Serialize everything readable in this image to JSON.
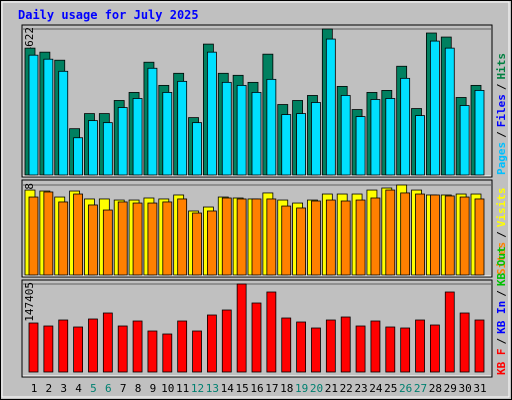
{
  "chart_data": [
    {
      "type": "bar",
      "title": "Daily usage for July 2025",
      "ylim": [
        0,
        34622
      ],
      "yticks": [
        34622
      ],
      "legend": [
        "Pages",
        "Files",
        "Hits"
      ],
      "legend_colors": [
        "#00c0ff",
        "#0000ff",
        "#008040"
      ],
      "legend_separator": "/",
      "series": [
        {
          "name": "Hits",
          "color": "#008060",
          "values": [
            30085,
            29130,
            27220,
            10983,
            14565,
            14565,
            17669,
            19579,
            26742,
            21251,
            24116,
            13610,
            31040,
            24116,
            23638,
            21967,
            28652,
            16714,
            17669,
            18863,
            34622,
            21012,
            15520,
            19579,
            20057,
            25787,
            15759,
            33667,
            32711,
            18385,
            21251
          ]
        },
        {
          "name": "Pages",
          "color": "#00e0ff",
          "values": [
            28414,
            27459,
            24593,
            8834,
            12894,
            12416,
            15998,
            18147,
            25310,
            19579,
            22206,
            12416,
            29130,
            21967,
            21251,
            19579,
            22683,
            14326,
            14565,
            17191,
            32234,
            18863,
            13849,
            17908,
            18147,
            22922,
            14087,
            31756,
            30085,
            16475,
            20057
          ]
        }
      ]
    },
    {
      "type": "bar",
      "ylim": [
        0,
        838
      ],
      "yticks": [
        838
      ],
      "legend": [
        "Sites",
        "Visits"
      ],
      "legend_colors": [
        "#ff8000",
        "#ffff00"
      ],
      "legend_separator": "/",
      "series": [
        {
          "name": "Visits",
          "color": "#ffff00",
          "values": [
            791,
            782,
            726,
            782,
            708,
            708,
            698,
            698,
            717,
            708,
            745,
            596,
            633,
            726,
            717,
            708,
            764,
            698,
            670,
            698,
            754,
            754,
            754,
            791,
            810,
            838,
            791,
            745,
            745,
            754,
            754
          ]
        },
        {
          "name": "Sites",
          "color": "#ff8000",
          "values": [
            726,
            773,
            680,
            754,
            652,
            605,
            680,
            670,
            670,
            680,
            708,
            577,
            596,
            717,
            708,
            708,
            708,
            642,
            624,
            689,
            698,
            689,
            698,
            717,
            791,
            764,
            754,
            745,
            736,
            726,
            708
          ]
        }
      ]
    },
    {
      "type": "bar",
      "ylim": [
        0,
        147405
      ],
      "yticks": [
        147405
      ],
      "legend": [
        "KB F",
        "KB In",
        "KB Out"
      ],
      "legend_colors": [
        "#ff0000",
        "#0000ff",
        "#00c000"
      ],
      "legend_separator": "/",
      "categories": [
        "1",
        "2",
        "3",
        "4",
        "5",
        "6",
        "7",
        "8",
        "9",
        "10",
        "11",
        "12",
        "13",
        "14",
        "15",
        "16",
        "17",
        "18",
        "19",
        "20",
        "21",
        "22",
        "23",
        "24",
        "25",
        "26",
        "27",
        "28",
        "29",
        "30",
        "31"
      ],
      "label_colors": [
        "#000000",
        "#000000",
        "#000000",
        "#000000",
        "#008070",
        "#008070",
        "#000000",
        "#000000",
        "#000000",
        "#000000",
        "#000000",
        "#008070",
        "#008070",
        "#000000",
        "#000000",
        "#000000",
        "#000000",
        "#000000",
        "#008070",
        "#008070",
        "#000000",
        "#000000",
        "#000000",
        "#000000",
        "#000000",
        "#008070",
        "#008070",
        "#000000",
        "#000000",
        "#000000",
        "#000000"
      ],
      "series": [
        {
          "name": "KB F",
          "color": "#ff0000",
          "values": [
            82075,
            77050,
            87100,
            75375,
            88775,
            98825,
            77050,
            85425,
            68675,
            63650,
            85425,
            68675,
            95475,
            103850,
            147405,
            115575,
            134000,
            90450,
            83750,
            73700,
            87100,
            92125,
            77050,
            85425,
            75375,
            73700,
            87100,
            78725,
            134000,
            98825,
            87100
          ]
        }
      ]
    }
  ]
}
